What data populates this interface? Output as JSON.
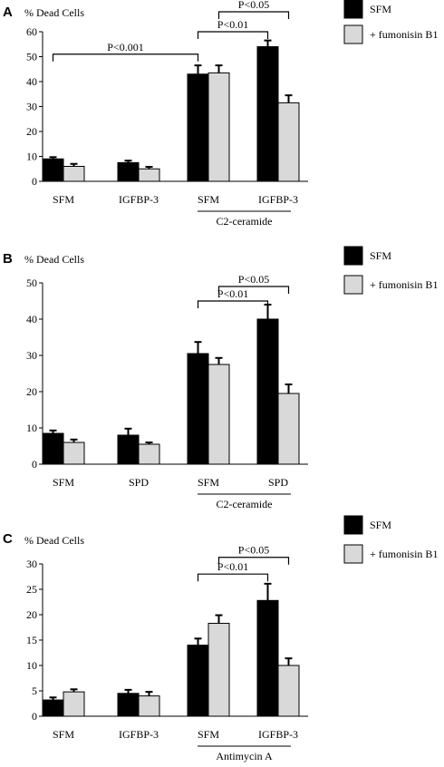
{
  "legend": {
    "sfm_label": "SFM",
    "fb1_label": "+ fumonisin B1"
  },
  "colors": {
    "sfm": "#000000",
    "fb1": "#d9d9d9",
    "axis": "#000000"
  },
  "chart_data": [
    {
      "type": "bar",
      "panel": "A",
      "ylabel": "% Dead Cells",
      "ylim": [
        0,
        60
      ],
      "yticks": [
        0,
        10,
        20,
        30,
        40,
        50,
        60
      ],
      "categories": [
        "SFM",
        "IGFBP-3",
        "SFM",
        "IGFBP-3"
      ],
      "group_label": "C2-ceramide",
      "group_span": [
        2,
        3
      ],
      "series": [
        {
          "name": "SFM",
          "values": [
            9,
            7.5,
            43,
            54
          ],
          "errors": [
            0.7,
            0.8,
            3.5,
            2.5
          ]
        },
        {
          "name": "+ fumonisin B1",
          "values": [
            6,
            5,
            43.5,
            31.5
          ],
          "errors": [
            1,
            0.8,
            3,
            3
          ]
        }
      ],
      "annotations": [
        {
          "text": "P<0.001",
          "from": [
            0,
            0
          ],
          "to": [
            2,
            0
          ],
          "value": 51,
          "level": 0
        },
        {
          "text": "P<0.01",
          "from": [
            2,
            0
          ],
          "to": [
            3,
            0
          ],
          "value": 60,
          "level": 1
        },
        {
          "text": "P<0.05",
          "from": [
            2,
            1
          ],
          "to": [
            3,
            1
          ],
          "value": 68,
          "level": 2
        }
      ]
    },
    {
      "type": "bar",
      "panel": "B",
      "ylabel": "% Dead Cells",
      "ylim": [
        0,
        50
      ],
      "yticks": [
        0,
        10,
        20,
        30,
        40,
        50
      ],
      "categories": [
        "SFM",
        "SPD",
        "SFM",
        "SPD"
      ],
      "group_label": "C2-ceramide",
      "group_span": [
        2,
        3
      ],
      "series": [
        {
          "name": "SFM",
          "values": [
            8.5,
            8,
            30.5,
            40
          ],
          "errors": [
            0.8,
            1.8,
            3.2,
            4
          ]
        },
        {
          "name": "+ fumonisin B1",
          "values": [
            6,
            5.5,
            27.5,
            19.5
          ],
          "errors": [
            0.8,
            0.5,
            1.8,
            2.5
          ]
        }
      ],
      "annotations": [
        {
          "text": "P<0.01",
          "from": [
            2,
            0
          ],
          "to": [
            3,
            0
          ],
          "value": 45,
          "level": 1
        },
        {
          "text": "P<0.05",
          "from": [
            2,
            1
          ],
          "to": [
            3,
            1
          ],
          "value": 49,
          "level": 2
        }
      ]
    },
    {
      "type": "bar",
      "panel": "C",
      "ylabel": "% Dead Cells",
      "ylim": [
        0,
        30
      ],
      "yticks": [
        0,
        5,
        10,
        15,
        20,
        25,
        30
      ],
      "categories": [
        "SFM",
        "IGFBP-3",
        "SFM",
        "IGFBP-3"
      ],
      "group_label": "Antimycin A",
      "group_span": [
        2,
        3
      ],
      "series": [
        {
          "name": "SFM",
          "values": [
            3.2,
            4.5,
            14,
            22.8
          ],
          "errors": [
            0.5,
            0.7,
            1.3,
            3.3
          ]
        },
        {
          "name": "+ fumonisin B1",
          "values": [
            4.8,
            4,
            18.3,
            10
          ],
          "errors": [
            0.5,
            0.8,
            1.6,
            1.4
          ]
        }
      ],
      "annotations": [
        {
          "text": "P<0.01",
          "from": [
            2,
            0
          ],
          "to": [
            3,
            0
          ],
          "value": 28,
          "level": 1
        },
        {
          "text": "P<0.05",
          "from": [
            2,
            1
          ],
          "to": [
            3,
            1
          ],
          "value": 31.3,
          "level": 2
        }
      ]
    }
  ]
}
